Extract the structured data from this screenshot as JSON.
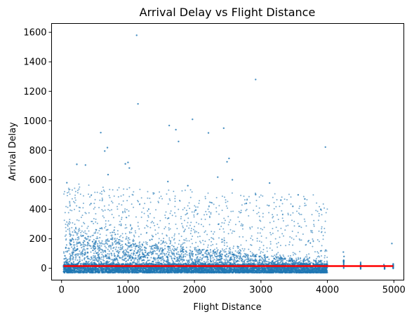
{
  "chart_data": {
    "type": "scatter",
    "title": "Arrival Delay vs Flight Distance",
    "xlabel": "Flight Distance",
    "ylabel": "Arrival Delay",
    "xlim": [
      -150,
      5150
    ],
    "ylim": [
      -80,
      1660
    ],
    "xticks": [
      0,
      1000,
      2000,
      3000,
      4000,
      5000
    ],
    "xtick_labels": [
      "0",
      "1000",
      "2000",
      "3000",
      "4000",
      "5000"
    ],
    "yticks": [
      0,
      200,
      400,
      600,
      800,
      1000,
      1200,
      1400,
      1600
    ],
    "ytick_labels": [
      "0",
      "200",
      "400",
      "600",
      "800",
      "1000",
      "1200",
      "1400",
      "1600"
    ],
    "grid": false,
    "colors": {
      "points": "#1f77b4",
      "trend": "#ff0000"
    },
    "dense_band": {
      "x_range": [
        30,
        4000
      ],
      "profile": [
        [
          30,
          90
        ],
        [
          100,
          240
        ],
        [
          200,
          250
        ],
        [
          300,
          240
        ],
        [
          400,
          230
        ],
        [
          500,
          215
        ],
        [
          700,
          200
        ],
        [
          900,
          190
        ],
        [
          1100,
          165
        ],
        [
          1300,
          160
        ],
        [
          1500,
          150
        ],
        [
          1700,
          140
        ],
        [
          2000,
          130
        ],
        [
          2300,
          120
        ],
        [
          2600,
          110
        ],
        [
          2900,
          95
        ],
        [
          3200,
          80
        ],
        [
          3500,
          65
        ],
        [
          3800,
          55
        ],
        [
          4000,
          50
        ]
      ]
    },
    "outliers": [
      {
        "x": 1130,
        "y": 1580
      },
      {
        "x": 2920,
        "y": 1280
      },
      {
        "x": 1150,
        "y": 1115
      },
      {
        "x": 1970,
        "y": 1010
      },
      {
        "x": 590,
        "y": 920
      },
      {
        "x": 1620,
        "y": 968
      },
      {
        "x": 1720,
        "y": 940
      },
      {
        "x": 2210,
        "y": 918
      },
      {
        "x": 2440,
        "y": 950
      },
      {
        "x": 1760,
        "y": 860
      },
      {
        "x": 3970,
        "y": 822
      },
      {
        "x": 690,
        "y": 818
      },
      {
        "x": 650,
        "y": 795
      },
      {
        "x": 2520,
        "y": 745
      },
      {
        "x": 1000,
        "y": 718
      },
      {
        "x": 960,
        "y": 708
      },
      {
        "x": 230,
        "y": 705
      },
      {
        "x": 360,
        "y": 700
      },
      {
        "x": 2490,
        "y": 722
      },
      {
        "x": 1020,
        "y": 680
      },
      {
        "x": 80,
        "y": 580
      },
      {
        "x": 700,
        "y": 635
      },
      {
        "x": 2350,
        "y": 618
      },
      {
        "x": 1600,
        "y": 588
      },
      {
        "x": 3130,
        "y": 578
      },
      {
        "x": 2570,
        "y": 600
      },
      {
        "x": 1900,
        "y": 560
      },
      {
        "x": 2920,
        "y": 500
      },
      {
        "x": 3560,
        "y": 498
      },
      {
        "x": 3660,
        "y": 470
      },
      {
        "x": 3300,
        "y": 462
      },
      {
        "x": 2780,
        "y": 440
      },
      {
        "x": 3480,
        "y": 420
      },
      {
        "x": 3900,
        "y": 400
      },
      {
        "x": 4970,
        "y": 168
      },
      {
        "x": 4240,
        "y": 110
      },
      {
        "x": 4250,
        "y": 80
      },
      {
        "x": 4500,
        "y": 40
      },
      {
        "x": 4850,
        "y": 25
      },
      {
        "x": 4990,
        "y": 30
      }
    ],
    "sparse_columns": [
      {
        "x": 4245,
        "y_range": [
          -5,
          60
        ]
      },
      {
        "x": 4500,
        "y_range": [
          -5,
          35
        ]
      },
      {
        "x": 4860,
        "y_range": [
          -5,
          20
        ]
      },
      {
        "x": 4990,
        "y_range": [
          -5,
          25
        ]
      }
    ],
    "trend_line": {
      "x": [
        30,
        4990
      ],
      "y": [
        15,
        15
      ]
    }
  }
}
